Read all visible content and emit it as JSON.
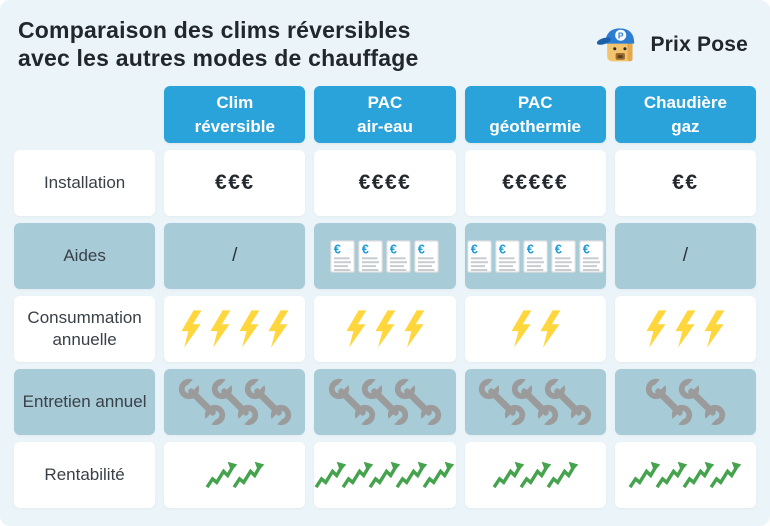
{
  "page": {
    "title_line1": "Comparaison des clims réversibles",
    "title_line2": "avec les autres modes de chauffage",
    "brand_name": "Prix Pose"
  },
  "chart_data": {
    "type": "table",
    "title": "Comparaison des clims réversibles avec les autres modes de chauffage",
    "columns": [
      {
        "key": "clim-reversible",
        "name": "Clim réversible",
        "line1": "Clim",
        "line2": "réversible"
      },
      {
        "key": "pac-air-eau",
        "name": "PAC air-eau",
        "line1": "PAC",
        "line2": "air-eau"
      },
      {
        "key": "pac-geothermie",
        "name": "PAC géothermie",
        "line1": "PAC",
        "line2": "géothermie"
      },
      {
        "key": "chaudiere-gaz",
        "name": "Chaudière gaz",
        "line1": "Chaudière",
        "line2": "gaz"
      }
    ],
    "rows": [
      {
        "key": "installation",
        "label": "Installation",
        "type": "money",
        "values": [
          "€€€",
          "€€€€",
          "€€€€€",
          "€€"
        ]
      },
      {
        "key": "aides",
        "label": "Aides",
        "type": "icons",
        "icon": "subsidy-doc",
        "counts": [
          0,
          4,
          5,
          0
        ],
        "empty_value": "/"
      },
      {
        "key": "consommation",
        "label": "Consummation annuelle",
        "type": "icons",
        "icon": "lightning",
        "counts": [
          4,
          3,
          2,
          3
        ]
      },
      {
        "key": "entretien",
        "label": "Entretien annuel",
        "type": "icons",
        "icon": "wrench",
        "counts": [
          3,
          3,
          3,
          2
        ]
      },
      {
        "key": "rentabilite",
        "label": "Rentabilité",
        "type": "icons",
        "icon": "growth",
        "counts": [
          2,
          5,
          3,
          4
        ]
      }
    ]
  },
  "colors": {
    "header_blue": "#2AA3DB",
    "row_blue": "#A8CBD8",
    "background": "#EBF4F8",
    "bolt_yellow": "#FFD63C",
    "wrench_gray": "#9B9B9B",
    "growth_green": "#45A24D",
    "doc_euro_blue": "#1E9CD7",
    "title_text": "#22272E"
  }
}
